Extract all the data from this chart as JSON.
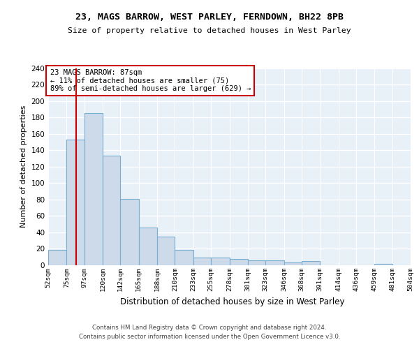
{
  "title": "23, MAGS BARROW, WEST PARLEY, FERNDOWN, BH22 8PB",
  "subtitle": "Size of property relative to detached houses in West Parley",
  "xlabel": "Distribution of detached houses by size in West Parley",
  "ylabel": "Number of detached properties",
  "bar_color": "#ccdaea",
  "bar_edge_color": "#7aaed0",
  "background_color": "#e8f0f8",
  "vline_x": 87,
  "vline_color": "#cc0000",
  "annotation_line1": "23 MAGS BARROW: 87sqm",
  "annotation_line2": "← 11% of detached houses are smaller (75)",
  "annotation_line3": "89% of semi-detached houses are larger (629) →",
  "annotation_box_edgecolor": "#cc0000",
  "footer_line1": "Contains HM Land Registry data © Crown copyright and database right 2024.",
  "footer_line2": "Contains public sector information licensed under the Open Government Licence v3.0.",
  "bin_edges": [
    52,
    75,
    97,
    120,
    142,
    165,
    188,
    210,
    233,
    255,
    278,
    301,
    323,
    346,
    368,
    391,
    414,
    436,
    459,
    481,
    504
  ],
  "bin_labels": [
    "52sqm",
    "75sqm",
    "97sqm",
    "120sqm",
    "142sqm",
    "165sqm",
    "188sqm",
    "210sqm",
    "233sqm",
    "255sqm",
    "278sqm",
    "301sqm",
    "323sqm",
    "346sqm",
    "368sqm",
    "391sqm",
    "414sqm",
    "436sqm",
    "459sqm",
    "481sqm",
    "504sqm"
  ],
  "counts": [
    19,
    153,
    185,
    133,
    81,
    46,
    35,
    19,
    9,
    9,
    8,
    6,
    6,
    3,
    5,
    0,
    0,
    0,
    2,
    0
  ],
  "ylim": [
    0,
    240
  ],
  "yticks": [
    0,
    20,
    40,
    60,
    80,
    100,
    120,
    140,
    160,
    180,
    200,
    220,
    240
  ]
}
